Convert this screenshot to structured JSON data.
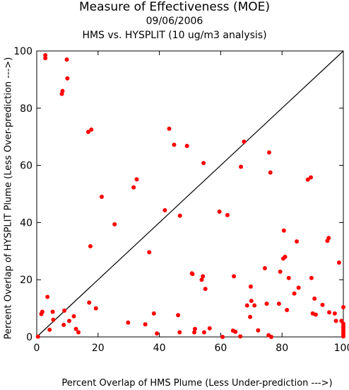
{
  "chart_data": {
    "type": "scatter",
    "title": "Measure of Effectiveness (MOE)",
    "subtitle": "09/06/2006",
    "subtitle2": "HMS vs. HYSPLIT  (10 ug/m3 analysis)",
    "xlabel": "Percent Overlap of HMS Plume (Less Under-prediction --->)",
    "ylabel": "Percent Overlap of HYSPLIT Plume (Less Over-prediction --->)",
    "xlim": [
      0,
      100
    ],
    "ylim": [
      0,
      100
    ],
    "xticks": [
      "0",
      "20",
      "40",
      "60",
      "80",
      "100"
    ],
    "yticks": [
      "0",
      "20",
      "40",
      "60",
      "80",
      "100"
    ],
    "diagonal": true,
    "point_color": "#ff0000",
    "points": [
      [
        0.4,
        0.1
      ],
      [
        1.5,
        8.0
      ],
      [
        1.8,
        8.8
      ],
      [
        2.8,
        98.5
      ],
      [
        2.8,
        97.5
      ],
      [
        3.5,
        14.0
      ],
      [
        4.2,
        2.5
      ],
      [
        5.2,
        8.8
      ],
      [
        5.4,
        6.0
      ],
      [
        8.2,
        85.0
      ],
      [
        8.4,
        86.0
      ],
      [
        8.8,
        4.2
      ],
      [
        9.0,
        9.2
      ],
      [
        9.8,
        97.0
      ],
      [
        10.0,
        90.4
      ],
      [
        10.6,
        5.6
      ],
      [
        12.1,
        7.2
      ],
      [
        12.8,
        2.8
      ],
      [
        13.6,
        1.6
      ],
      [
        16.8,
        71.7
      ],
      [
        17.1,
        12.0
      ],
      [
        17.5,
        31.7
      ],
      [
        17.8,
        72.5
      ],
      [
        19.3,
        10.0
      ],
      [
        21.2,
        49.0
      ],
      [
        25.4,
        39.4
      ],
      [
        29.8,
        5.0
      ],
      [
        31.6,
        52.3
      ],
      [
        32.6,
        55.1
      ],
      [
        35.4,
        4.4
      ],
      [
        36.7,
        29.6
      ],
      [
        38.2,
        8.2
      ],
      [
        39.2,
        1.2
      ],
      [
        41.8,
        44.3
      ],
      [
        43.2,
        72.8
      ],
      [
        44.8,
        67.2
      ],
      [
        46.1,
        7.6
      ],
      [
        46.6,
        1.6
      ],
      [
        46.7,
        42.4
      ],
      [
        49.0,
        66.8
      ],
      [
        50.6,
        22.2
      ],
      [
        50.8,
        22.0
      ],
      [
        51.4,
        1.6
      ],
      [
        51.6,
        2.8
      ],
      [
        53.8,
        20.0
      ],
      [
        54.2,
        21.2
      ],
      [
        54.4,
        60.8
      ],
      [
        54.6,
        1.6
      ],
      [
        55.0,
        16.8
      ],
      [
        56.4,
        3.0
      ],
      [
        59.6,
        43.8
      ],
      [
        60.6,
        0.0
      ],
      [
        62.2,
        42.6
      ],
      [
        64.0,
        2.2
      ],
      [
        64.3,
        21.2
      ],
      [
        64.8,
        1.8
      ],
      [
        66.4,
        0.2
      ],
      [
        66.6,
        59.5
      ],
      [
        67.6,
        68.3
      ],
      [
        68.6,
        11.0
      ],
      [
        69.6,
        7.0
      ],
      [
        69.8,
        17.6
      ],
      [
        70.0,
        12.6
      ],
      [
        71.0,
        11.0
      ],
      [
        72.2,
        2.3
      ],
      [
        74.4,
        24.0
      ],
      [
        75.0,
        11.6
      ],
      [
        75.6,
        0.6
      ],
      [
        75.8,
        64.5
      ],
      [
        76.2,
        57.5
      ],
      [
        76.5,
        0.0
      ],
      [
        79.0,
        11.6
      ],
      [
        79.4,
        22.8
      ],
      [
        80.4,
        27.4
      ],
      [
        80.6,
        37.2
      ],
      [
        81.0,
        28.0
      ],
      [
        81.6,
        9.4
      ],
      [
        82.2,
        20.6
      ],
      [
        84.0,
        15.2
      ],
      [
        84.8,
        33.4
      ],
      [
        85.4,
        17.2
      ],
      [
        88.4,
        55.0
      ],
      [
        89.4,
        55.8
      ],
      [
        89.6,
        20.6
      ],
      [
        90.0,
        8.2
      ],
      [
        90.6,
        13.4
      ],
      [
        91.0,
        7.8
      ],
      [
        93.2,
        11.2
      ],
      [
        94.8,
        33.6
      ],
      [
        95.2,
        34.6
      ],
      [
        95.4,
        8.6
      ],
      [
        97.2,
        8.2
      ],
      [
        97.6,
        5.6
      ],
      [
        98.6,
        26.0
      ],
      [
        99.4,
        5.6
      ],
      [
        100.0,
        10.4
      ],
      [
        100.0,
        4.6
      ],
      [
        100.0,
        3.8
      ],
      [
        100.0,
        3.2
      ],
      [
        100.0,
        2.4
      ],
      [
        100.0,
        1.6
      ],
      [
        100.0,
        0.8
      ],
      [
        100.0,
        0.2
      ]
    ]
  }
}
